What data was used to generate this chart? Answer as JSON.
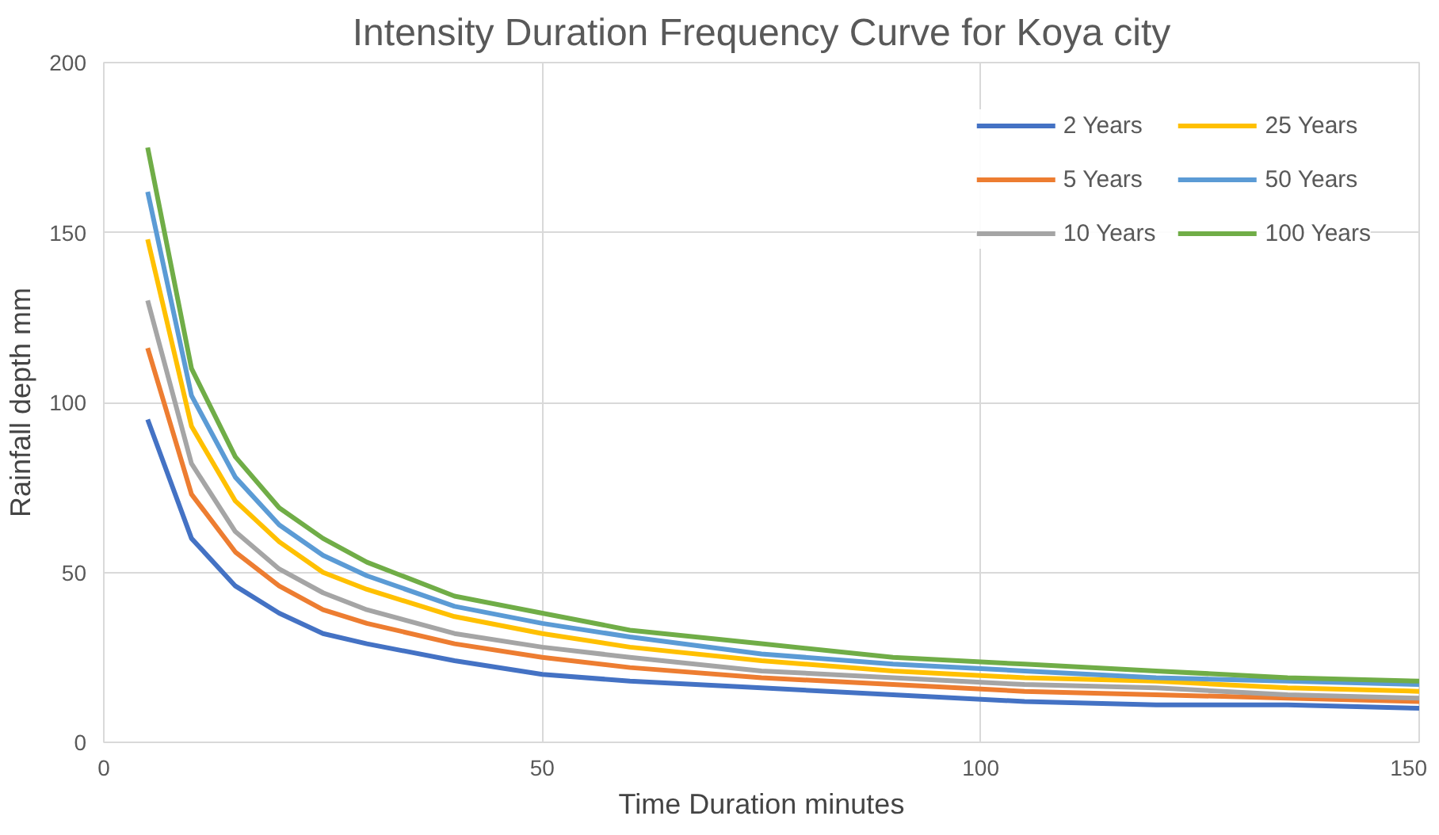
{
  "chart_data": {
    "type": "line",
    "title": "Intensity Duration Frequency Curve for Koya city",
    "xlabel": "Time Duration minutes",
    "ylabel": "Rainfall depth mm",
    "x": [
      5,
      10,
      15,
      20,
      25,
      30,
      40,
      50,
      60,
      75,
      90,
      105,
      120,
      135,
      150
    ],
    "series": [
      {
        "name": "2 Years",
        "color": "#4472c4",
        "values": [
          95,
          60,
          46,
          38,
          32,
          29,
          24,
          20,
          18,
          16,
          14,
          12,
          11,
          11,
          10
        ]
      },
      {
        "name": "5 Years",
        "color": "#ed7d31",
        "values": [
          116,
          73,
          56,
          46,
          39,
          35,
          29,
          25,
          22,
          19,
          17,
          15,
          14,
          13,
          12
        ]
      },
      {
        "name": "10 Years",
        "color": "#a5a5a5",
        "values": [
          130,
          82,
          62,
          51,
          44,
          39,
          32,
          28,
          25,
          21,
          19,
          17,
          16,
          14,
          13
        ]
      },
      {
        "name": "25 Years",
        "color": "#ffc000",
        "values": [
          148,
          93,
          71,
          59,
          50,
          45,
          37,
          32,
          28,
          24,
          21,
          19,
          18,
          16,
          15
        ]
      },
      {
        "name": "50 Years",
        "color": "#5b9bd5",
        "values": [
          162,
          102,
          78,
          64,
          55,
          49,
          40,
          35,
          31,
          26,
          23,
          21,
          19,
          18,
          17
        ]
      },
      {
        "name": "100 Years",
        "color": "#70ad47",
        "values": [
          175,
          110,
          84,
          69,
          60,
          53,
          43,
          38,
          33,
          29,
          25,
          23,
          21,
          19,
          18
        ]
      }
    ],
    "xlim": [
      0,
      150
    ],
    "ylim": [
      0,
      200
    ],
    "xticks": [
      0,
      50,
      100,
      150
    ],
    "yticks": [
      0,
      50,
      100,
      150,
      200
    ],
    "grid": true,
    "legend": "top right",
    "marker": "none",
    "line_style": "solid"
  }
}
